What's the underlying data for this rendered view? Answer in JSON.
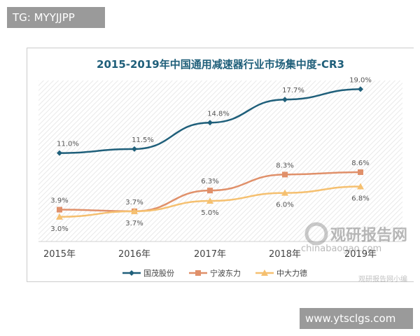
{
  "header_tag": "TG: MYYJJPP",
  "footer_tag": "www.ytsclgs.com",
  "watermark": {
    "name": "观研报告网",
    "url": "chinabaogao.com",
    "sub": "观研报告网小编"
  },
  "chart_data": {
    "type": "line",
    "title": "2015-2019年中国通用减速器行业市场集中度-CR3",
    "categories": [
      "2015年",
      "2016年",
      "2017年",
      "2018年",
      "2019年"
    ],
    "ylim": [
      0,
      20
    ],
    "grid": false,
    "legend_position": "bottom",
    "series": [
      {
        "name": "国茂股份",
        "color": "#1f5f7a",
        "marker": "diamond",
        "values": [
          11.0,
          11.5,
          14.8,
          17.7,
          19.0
        ],
        "labels": [
          "11.0%",
          "11.5%",
          "14.8%",
          "17.7%",
          "19.0%"
        ]
      },
      {
        "name": "宁波东力",
        "color": "#e0906a",
        "marker": "square",
        "values": [
          3.9,
          3.7,
          6.3,
          8.3,
          8.6
        ],
        "labels": [
          "3.9%",
          "3.7%",
          "6.3%",
          "8.3%",
          "8.6%"
        ]
      },
      {
        "name": "中大力德",
        "color": "#f5c070",
        "marker": "triangle",
        "values": [
          3.0,
          3.7,
          5.0,
          6.0,
          6.8
        ],
        "labels": [
          "3.0%",
          "3.7%",
          "5.0%",
          "6.0%",
          "6.8%"
        ]
      }
    ]
  }
}
